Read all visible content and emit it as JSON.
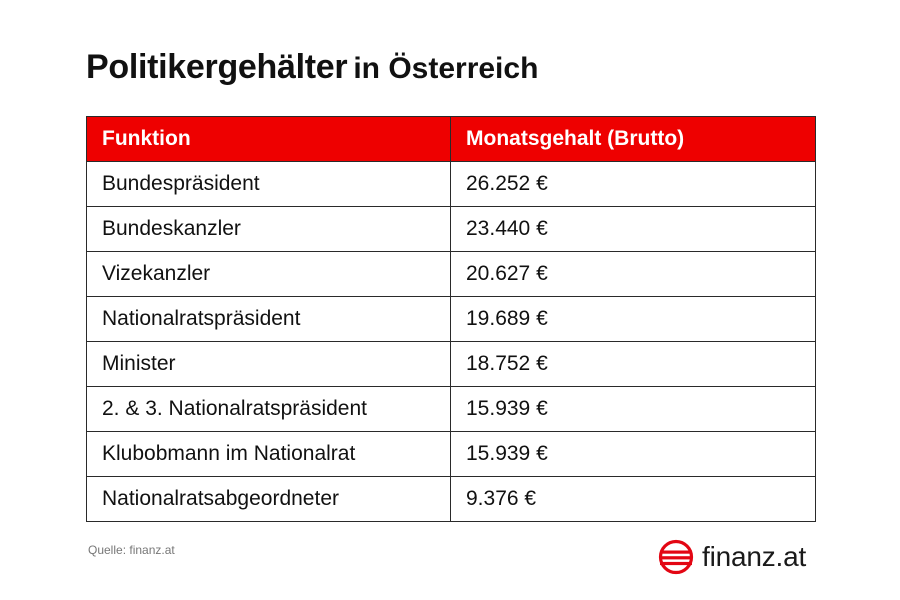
{
  "title": {
    "main": "Politikergehälter",
    "sub": "in Österreich"
  },
  "table": {
    "headers": [
      "Funktion",
      "Monatsgehalt (Brutto)"
    ],
    "rows": [
      [
        "Bundespräsident",
        "26.252 €"
      ],
      [
        "Bundeskanzler",
        "23.440 €"
      ],
      [
        "Vizekanzler",
        "20.627 €"
      ],
      [
        "Nationalratspräsident",
        "19.689 €"
      ],
      [
        "Minister",
        "18.752 €"
      ],
      [
        "2. & 3. Nationalratspräsident",
        "15.939 €"
      ],
      [
        "Klubobmann im Nationalrat",
        "15.939 €"
      ],
      [
        "Nationalratsabgeordneter",
        "9.376 €"
      ]
    ]
  },
  "source": "Quelle: finanz.at",
  "logo": {
    "text": "finanz.at",
    "icon": "finanz-logo-icon"
  },
  "colors": {
    "header_bg": "#ee0000",
    "header_text": "#ffffff",
    "border": "#2a2a2a",
    "logo_accent": "#e30613"
  }
}
